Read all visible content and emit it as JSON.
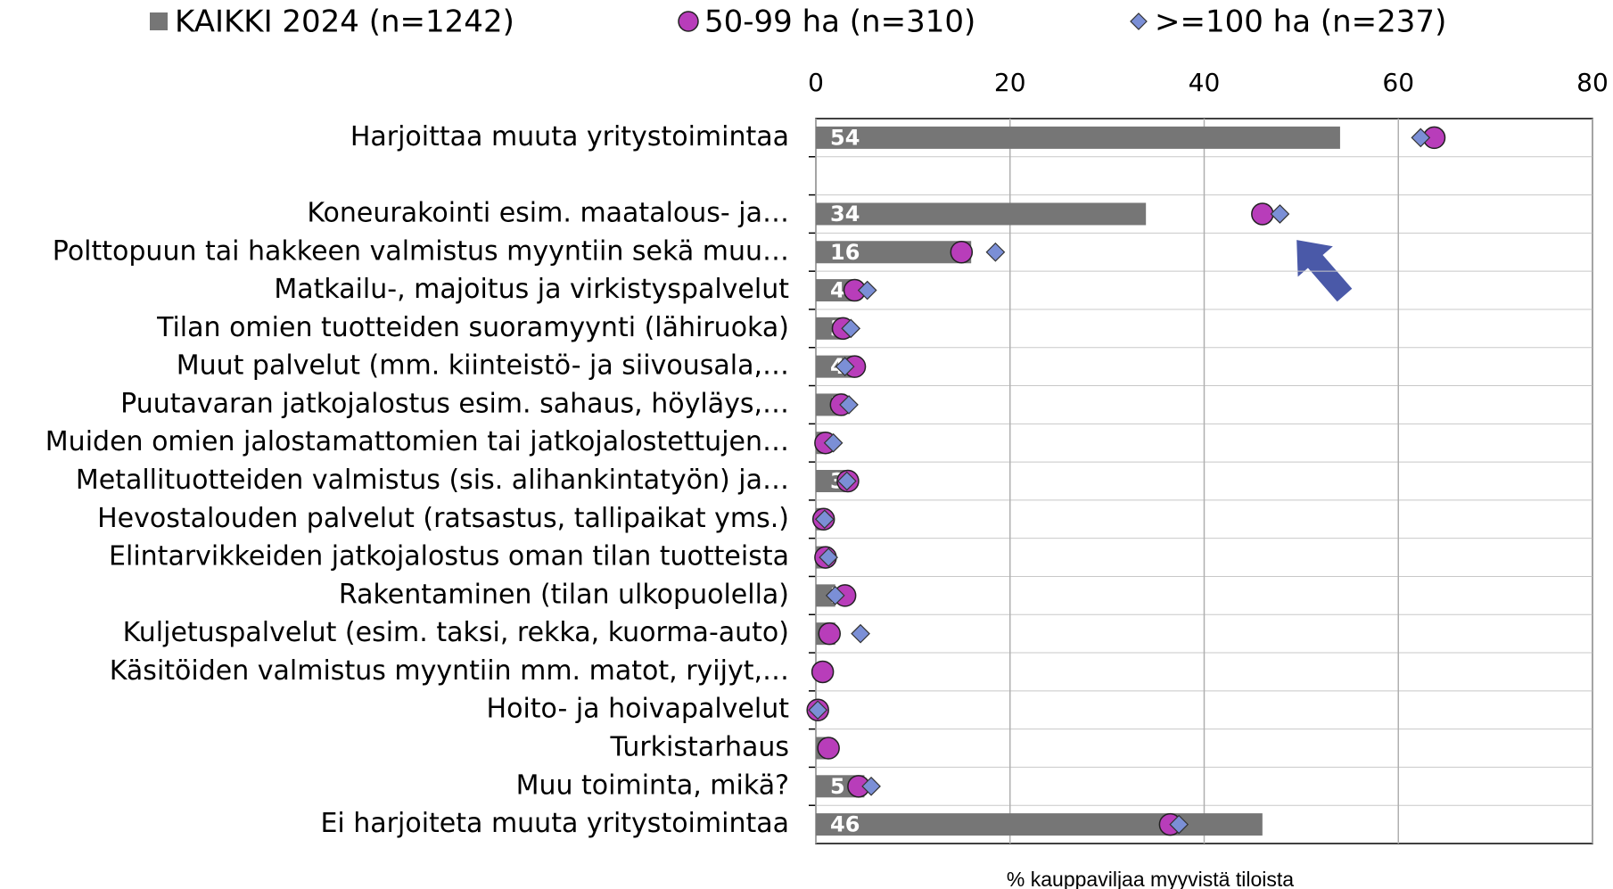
{
  "chart_data": {
    "type": "bar-dot",
    "x_label": "% kauppaviljaa myyvistä tiloista",
    "categories": [
      "Harjoittaa muuta yritystoimintaa",
      null,
      "Koneurakointi esim. maatalous- ja…",
      "Polttopuun tai hakkeen valmistus myyntiin sekä muu…",
      "Matkailu-, majoitus ja virkistyspalvelut",
      "Tilan omien tuotteiden suoramyynti (lähiruoka)",
      "Muut palvelut (mm. kiinteistö- ja siivousala,…",
      "Puutavaran jatkojalostus esim. sahaus, höyläys,…",
      "Muiden omien jalostamattomien tai jatkojalostettujen…",
      "Metallituotteiden valmistus (sis. alihankintatyön) ja…",
      "Hevostalouden palvelut (ratsastus, tallipaikat yms.)",
      "Elintarvikkeiden jatkojalostus oman tilan tuotteista",
      "Rakentaminen (tilan ulkopuolella)",
      "Kuljetuspalvelut (esim. taksi, rekka, kuorma-auto)",
      "Käsitöiden valmistus myyntiin mm. matot, ryijyt,…",
      "Hoito- ja hoivapalvelut",
      "Turkistarhaus",
      "Muu toiminta, mikä?",
      "Ei harjoiteta muuta yritystoimintaa"
    ],
    "series": [
      {
        "name": "KAIKKI 2024 (n=1242)",
        "color": "#767676",
        "marker": "bar",
        "values": [
          54,
          null,
          34,
          16,
          4,
          3,
          4,
          3,
          1,
          3,
          1,
          1,
          2,
          2,
          0,
          0,
          1,
          5,
          46
        ]
      },
      {
        "name": "50-99 ha (n=310)",
        "color": "#b83dba",
        "marker": "circle",
        "values": [
          63.7,
          null,
          46,
          15,
          4,
          2.8,
          4,
          2.6,
          1,
          3.3,
          0.8,
          1,
          3,
          1.4,
          0.7,
          0.2,
          1.3,
          4.4,
          36.5
        ]
      },
      {
        "name": ">=100 ha (n=237)",
        "color": "#7b8fd6",
        "marker": "diamond",
        "values": [
          62.3,
          null,
          47.8,
          18.5,
          5.3,
          3.6,
          3,
          3.4,
          1.8,
          3.2,
          0.9,
          1.3,
          2,
          4.6,
          null,
          0.2,
          null,
          5.7,
          37.4
        ]
      }
    ],
    "xlim": [
      0,
      80
    ],
    "xticks": [
      0,
      20,
      40,
      60,
      80
    ],
    "grid": true
  }
}
